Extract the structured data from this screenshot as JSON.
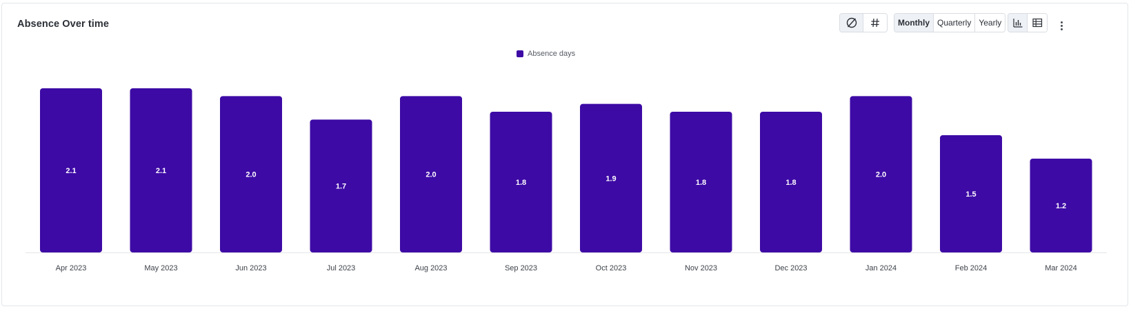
{
  "header": {
    "title": "Absence Over time"
  },
  "toolbar": {
    "display_toggles": [
      {
        "name": "no-data-icon",
        "glyph": "∅",
        "active": true
      },
      {
        "name": "hash-icon",
        "glyph": "#",
        "active": false
      }
    ],
    "periods": [
      {
        "label": "Monthly",
        "active": true
      },
      {
        "label": "Quarterly",
        "active": false
      },
      {
        "label": "Yearly",
        "active": false
      }
    ],
    "views": [
      {
        "name": "bar-chart-icon",
        "active": true
      },
      {
        "name": "table-icon",
        "active": false
      }
    ],
    "more_icon": "kebab-menu-icon"
  },
  "colors": {
    "bar": "#3d0aa5",
    "axis": "#e3e5e8"
  },
  "chart_data": {
    "type": "bar",
    "categories": [
      "Apr 2023",
      "May 2023",
      "Jun 2023",
      "Jul 2023",
      "Aug 2023",
      "Sep 2023",
      "Oct 2023",
      "Nov 2023",
      "Dec 2023",
      "Jan 2024",
      "Feb 2024",
      "Mar 2024"
    ],
    "series": [
      {
        "name": "Absence days",
        "values": [
          2.1,
          2.1,
          2.0,
          1.7,
          2.0,
          1.8,
          1.9,
          1.8,
          1.8,
          2.0,
          1.5,
          1.2
        ],
        "labels": [
          "2.1",
          "2.1",
          "2.0",
          "1.7",
          "2.0",
          "1.8",
          "1.9",
          "1.8",
          "1.8",
          "2.0",
          "1.5",
          "1.2"
        ]
      }
    ],
    "title": "Absence Over time",
    "xlabel": "",
    "ylabel": "",
    "ylim": [
      0,
      2.35
    ],
    "grid": false,
    "legend": "top-center",
    "data_labels": "inside-center"
  }
}
